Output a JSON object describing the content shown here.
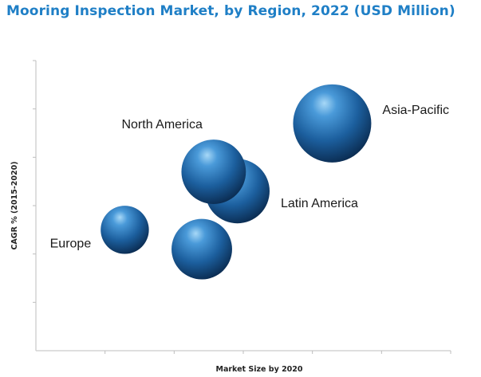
{
  "chart_data": {
    "type": "bubble",
    "title": "Mooring Inspection Market, by Region, 2022 (USD Million)",
    "xlabel": "Market Size by 2020",
    "ylabel": "CAGR % (2015-2020)",
    "x_ticks": 6,
    "y_ticks": 6,
    "grid": false,
    "legend": "none",
    "points": [
      {
        "label": "Asia-Pacific",
        "x": 5.0,
        "y": 4.7,
        "size": 100
      },
      {
        "label": "Latin America",
        "x": 3.4,
        "y": 3.3,
        "size": 68
      },
      {
        "label": "North America",
        "x": 3.0,
        "y": 3.7,
        "size": 68
      },
      {
        "label": "Europe",
        "x": 1.5,
        "y": 2.5,
        "size": 38
      },
      {
        "label": "",
        "x": 2.8,
        "y": 2.1,
        "size": 60
      }
    ],
    "xlim": [
      0,
      7
    ],
    "ylim": [
      0,
      6
    ]
  },
  "colors": {
    "title": "#1f7fc6",
    "bubble_highlight": "#9ed2f5",
    "bubble_mid": "#2a78c2",
    "bubble_dark": "#0b2f56"
  }
}
